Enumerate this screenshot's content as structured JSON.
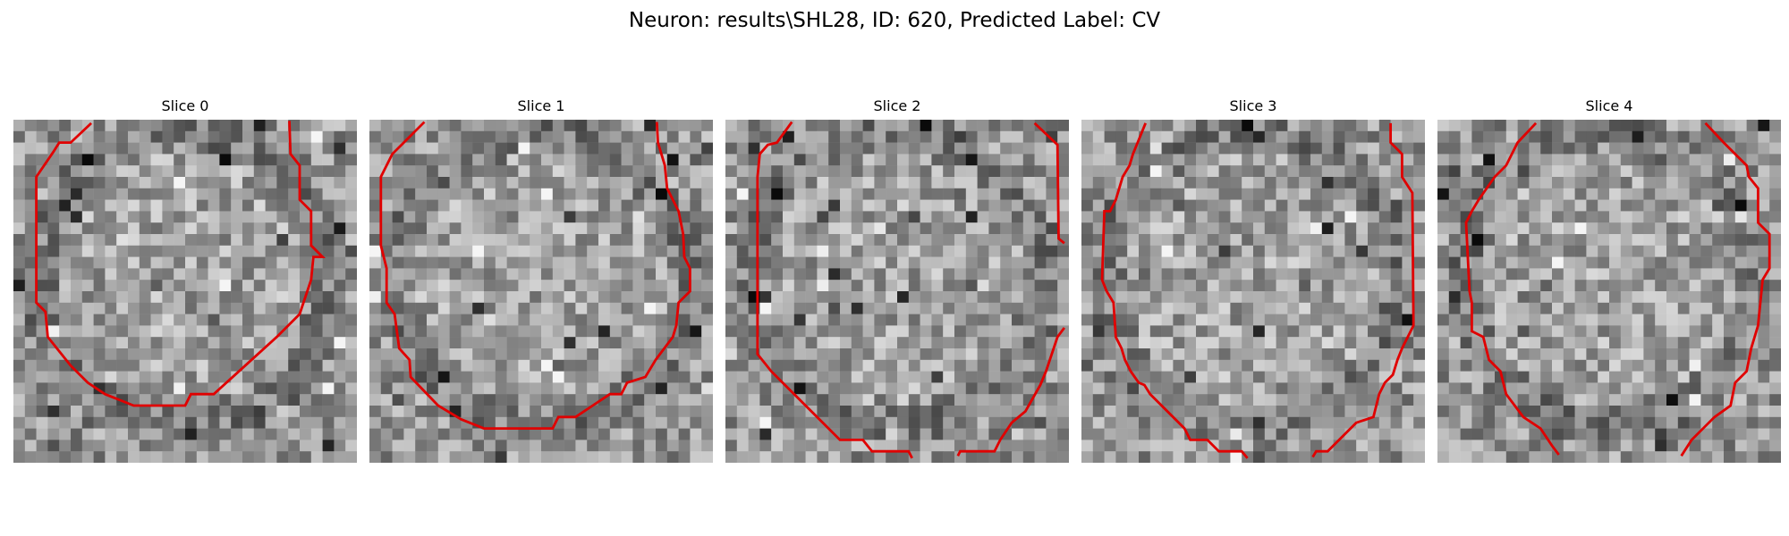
{
  "figure": {
    "title": "Neuron: results\\SHL28, ID: 620, Predicted Label: CV"
  },
  "contour_color": "#e00000",
  "panels": [
    {
      "title": "Slice 0"
    },
    {
      "title": "Slice 1"
    },
    {
      "title": "Slice 2"
    },
    {
      "title": "Slice 3"
    },
    {
      "title": "Slice 4"
    }
  ]
}
